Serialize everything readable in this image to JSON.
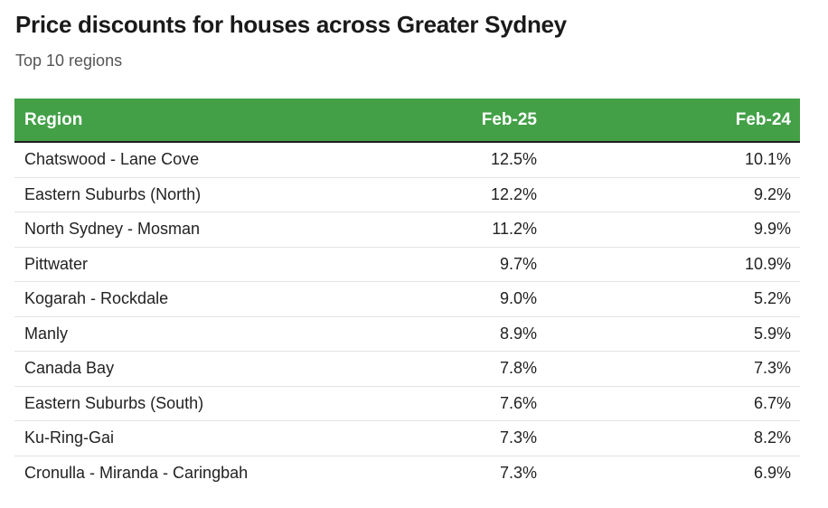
{
  "chart_data": {
    "type": "table",
    "title": "Price discounts for houses across Greater Sydney",
    "subtitle": "Top 10 regions",
    "columns": [
      "Region",
      "Feb-25",
      "Feb-24"
    ],
    "header_color": "#43a047",
    "rows": [
      {
        "region": "Chatswood - Lane Cove",
        "feb25": "12.5%",
        "feb24": "10.1%"
      },
      {
        "region": "Eastern Suburbs (North)",
        "feb25": "12.2%",
        "feb24": "9.2%"
      },
      {
        "region": "North Sydney - Mosman",
        "feb25": "11.2%",
        "feb24": "9.9%"
      },
      {
        "region": "Pittwater",
        "feb25": "9.7%",
        "feb24": "10.9%"
      },
      {
        "region": "Kogarah - Rockdale",
        "feb25": "9.0%",
        "feb24": "5.2%"
      },
      {
        "region": "Manly",
        "feb25": "8.9%",
        "feb24": "5.9%"
      },
      {
        "region": "Canada Bay",
        "feb25": "7.8%",
        "feb24": "7.3%"
      },
      {
        "region": "Eastern Suburbs (South)",
        "feb25": "7.6%",
        "feb24": "6.7%"
      },
      {
        "region": "Ku-Ring-Gai",
        "feb25": "7.3%",
        "feb24": "8.2%"
      },
      {
        "region": "Cronulla - Miranda - Caringbah",
        "feb25": "7.3%",
        "feb24": "6.9%"
      }
    ]
  }
}
